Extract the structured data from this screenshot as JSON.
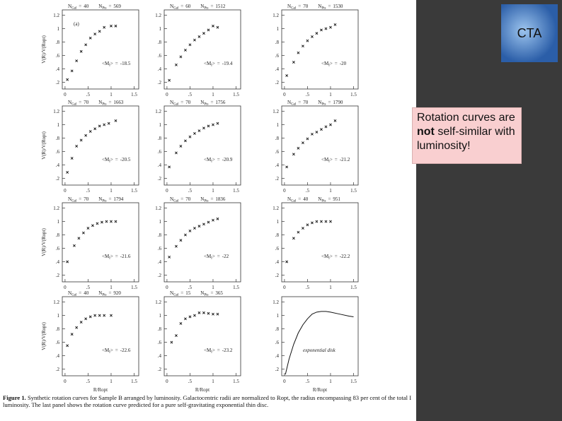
{
  "slide": {
    "logo": "CTA",
    "callout_pre": "Rotation curves are ",
    "callout_bold": "not",
    "callout_post": " self-similar with luminosity!",
    "caption_label": "Figure 1.",
    "caption_text": "Synthetic rotation curves for Sample B arranged by luminosity. Galactocentric radii are normalized to Ropt, the radius encompassing 83 per cent of the total I luminosity. The last panel shows the rotation curve predicted for a pure self-gravitating exponential thin disc."
  },
  "chart_data": {
    "type": "panel-grid",
    "ylabel": "V(R)/V(Ropt)",
    "xlabel": "R/Ropt",
    "labels": {
      "n": "N",
      "gal": "Gal",
      "pts": "Pts",
      "eq": "=",
      "m_open": "<M",
      "m_sub": "I",
      "m_close": ">"
    },
    "xlim": [
      -0.06,
      1.6
    ],
    "ylim": [
      0.1,
      1.28
    ],
    "xticks": [
      0,
      {
        "value": 0.5,
        "label": ".5"
      },
      1,
      1.5
    ],
    "yticks": [
      {
        "value": 0.2,
        "label": ".2"
      },
      {
        "value": 0.4,
        "label": ".4"
      },
      {
        "value": 0.6,
        "label": ".6"
      },
      {
        "value": 0.8,
        "label": ".8"
      },
      1,
      1.2
    ],
    "panels": [
      {
        "type": "scatter",
        "tag": "(a)",
        "ngal": 40,
        "npts": 569,
        "mi": -18.5,
        "x": [
          0.05,
          0.15,
          0.25,
          0.35,
          0.45,
          0.55,
          0.65,
          0.75,
          0.85,
          1.0,
          1.1
        ],
        "values": [
          0.24,
          0.37,
          0.52,
          0.66,
          0.76,
          0.86,
          0.92,
          0.96,
          1.02,
          1.04,
          1.04
        ]
      },
      {
        "type": "scatter",
        "ngal": 60,
        "npts": 1512,
        "mi": -19.4,
        "x": [
          0.05,
          0.2,
          0.3,
          0.4,
          0.5,
          0.6,
          0.7,
          0.8,
          0.9,
          1.0,
          1.1
        ],
        "values": [
          0.23,
          0.46,
          0.58,
          0.68,
          0.76,
          0.83,
          0.88,
          0.93,
          0.98,
          1.04,
          1.02
        ]
      },
      {
        "type": "scatter",
        "ngal": 70,
        "npts": 1530,
        "mi": -20.0,
        "x": [
          0.05,
          0.2,
          0.3,
          0.4,
          0.5,
          0.6,
          0.7,
          0.8,
          0.9,
          1.0,
          1.1
        ],
        "values": [
          0.3,
          0.5,
          0.64,
          0.74,
          0.82,
          0.88,
          0.93,
          0.98,
          1.0,
          1.02,
          1.06
        ]
      },
      {
        "type": "scatter",
        "ngal": 70,
        "npts": 1663,
        "mi": -20.5,
        "x": [
          0.05,
          0.15,
          0.25,
          0.35,
          0.45,
          0.55,
          0.65,
          0.75,
          0.85,
          0.95,
          1.1
        ],
        "values": [
          0.29,
          0.5,
          0.68,
          0.77,
          0.84,
          0.9,
          0.94,
          0.98,
          1.0,
          1.02,
          1.06
        ]
      },
      {
        "type": "scatter",
        "ngal": 70,
        "npts": 1756,
        "mi": -20.9,
        "x": [
          0.05,
          0.2,
          0.3,
          0.4,
          0.5,
          0.6,
          0.7,
          0.8,
          0.9,
          1.0,
          1.1
        ],
        "values": [
          0.37,
          0.58,
          0.68,
          0.76,
          0.82,
          0.87,
          0.91,
          0.95,
          0.98,
          1.0,
          1.02
        ]
      },
      {
        "type": "scatter",
        "ngal": 70,
        "npts": 1790,
        "mi": -21.2,
        "x": [
          0.05,
          0.2,
          0.3,
          0.4,
          0.5,
          0.6,
          0.7,
          0.8,
          0.9,
          1.0,
          1.1
        ],
        "values": [
          0.37,
          0.56,
          0.65,
          0.73,
          0.79,
          0.86,
          0.89,
          0.93,
          0.97,
          1.0,
          1.06
        ]
      },
      {
        "type": "scatter",
        "ngal": 70,
        "npts": 1794,
        "mi": -21.6,
        "x": [
          0.05,
          0.2,
          0.3,
          0.4,
          0.5,
          0.6,
          0.7,
          0.8,
          0.9,
          1.0,
          1.1
        ],
        "values": [
          0.4,
          0.64,
          0.75,
          0.83,
          0.9,
          0.94,
          0.97,
          0.99,
          1.0,
          1.0,
          1.0
        ]
      },
      {
        "type": "scatter",
        "ngal": 70,
        "npts": 1836,
        "mi": -22.0,
        "x": [
          0.05,
          0.2,
          0.3,
          0.4,
          0.5,
          0.6,
          0.7,
          0.8,
          0.9,
          1.0,
          1.1
        ],
        "values": [
          0.47,
          0.63,
          0.72,
          0.8,
          0.86,
          0.9,
          0.93,
          0.96,
          0.99,
          1.02,
          1.04
        ]
      },
      {
        "type": "scatter",
        "ngal": 40,
        "npts": 951,
        "mi": -22.2,
        "x": [
          0.05,
          0.2,
          0.3,
          0.4,
          0.5,
          0.6,
          0.7,
          0.8,
          0.9,
          1.0
        ],
        "values": [
          0.4,
          0.75,
          0.84,
          0.9,
          0.95,
          0.98,
          1.0,
          1.0,
          1.0,
          1.0
        ]
      },
      {
        "type": "scatter",
        "ngal": 40,
        "npts": 920,
        "mi": -22.6,
        "x": [
          0.05,
          0.15,
          0.25,
          0.35,
          0.45,
          0.55,
          0.65,
          0.75,
          0.85,
          1.0
        ],
        "values": [
          0.55,
          0.72,
          0.82,
          0.9,
          0.95,
          0.98,
          1.0,
          1.0,
          1.0,
          1.0
        ]
      },
      {
        "type": "scatter",
        "ngal": 15,
        "npts": 365,
        "mi": -23.2,
        "x": [
          0.1,
          0.2,
          0.3,
          0.4,
          0.5,
          0.6,
          0.7,
          0.8,
          0.9,
          1.0,
          1.1
        ],
        "values": [
          0.6,
          0.7,
          0.88,
          0.95,
          0.98,
          1.0,
          1.04,
          1.04,
          1.03,
          1.02,
          1.02
        ]
      },
      {
        "type": "line",
        "note": "exponential disk",
        "x": [
          0.02,
          0.1,
          0.2,
          0.3,
          0.4,
          0.5,
          0.6,
          0.7,
          0.8,
          0.9,
          1.0,
          1.2,
          1.4,
          1.5
        ],
        "values": [
          0.12,
          0.35,
          0.57,
          0.74,
          0.86,
          0.95,
          1.02,
          1.05,
          1.06,
          1.06,
          1.05,
          1.02,
          0.99,
          0.98
        ]
      }
    ]
  }
}
